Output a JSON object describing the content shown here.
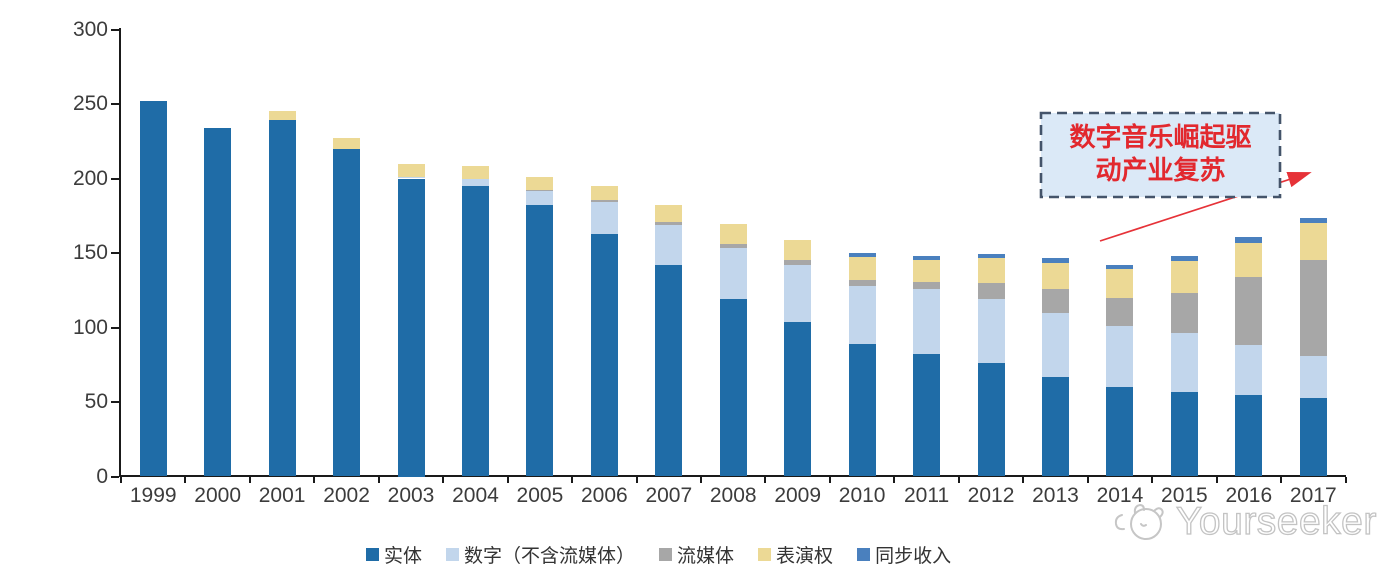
{
  "chart_data": {
    "type": "bar",
    "stacked": true,
    "title": "",
    "xlabel": "",
    "ylabel": "",
    "ylim": [
      0,
      300
    ],
    "yticks": [
      0,
      50,
      100,
      150,
      200,
      250,
      300
    ],
    "grid": false,
    "legend_position": "bottom",
    "categories": [
      "1999",
      "2000",
      "2001",
      "2002",
      "2003",
      "2004",
      "2005",
      "2006",
      "2007",
      "2008",
      "2009",
      "2010",
      "2011",
      "2012",
      "2013",
      "2014",
      "2015",
      "2016",
      "2017"
    ],
    "series": [
      {
        "name": "实体",
        "color": "#1F6CA7",
        "values": [
          252,
          234,
          239,
          220,
          200,
          195,
          182,
          163,
          142,
          119,
          104,
          89,
          82,
          76,
          67,
          60,
          57,
          55,
          53
        ]
      },
      {
        "name": "数字（不含流媒体）",
        "color": "#C2D6EC",
        "values": [
          0,
          0,
          0,
          0,
          1,
          4.5,
          9.5,
          21,
          26.5,
          34.5,
          38,
          39,
          44,
          43,
          43,
          41,
          39,
          33.5,
          28
        ]
      },
      {
        "name": "流媒体",
        "color": "#A7A7A7",
        "values": [
          0,
          0,
          0,
          0,
          0,
          0,
          1,
          1.5,
          2,
          2.5,
          3,
          4,
          4.5,
          11,
          16,
          19,
          27,
          45.5,
          64.5
        ]
      },
      {
        "name": "表演权",
        "color": "#ECD995",
        "values": [
          0,
          0,
          6,
          7,
          8.5,
          9,
          8.5,
          9.5,
          11.5,
          13.5,
          13.5,
          15,
          14.5,
          16.5,
          17.5,
          19,
          21.5,
          23,
          24.5
        ]
      },
      {
        "name": "同步收入",
        "color": "#4A80BE",
        "values": [
          0,
          0,
          0,
          0,
          0,
          0,
          0,
          0,
          0,
          0,
          0,
          3,
          3,
          3,
          3,
          3,
          3.5,
          3.5,
          3.5
        ]
      }
    ]
  },
  "annotation": {
    "line1": "数字音乐崛起驱",
    "line2": "动产业复苏",
    "full_text": "数字音乐崛起驱动产业复苏",
    "box_fill": "#DBE9F7",
    "border_color": "#44546A",
    "text_color": "#E2282E",
    "arrow_color": "#E63238"
  },
  "watermark": {
    "text": "Yourseeker",
    "color": "#c3c3c3",
    "logo": "yourseeker-mascot-icon"
  },
  "axis": {
    "line_color": "#1a1a1a",
    "label_color": "#3c3c3c"
  }
}
